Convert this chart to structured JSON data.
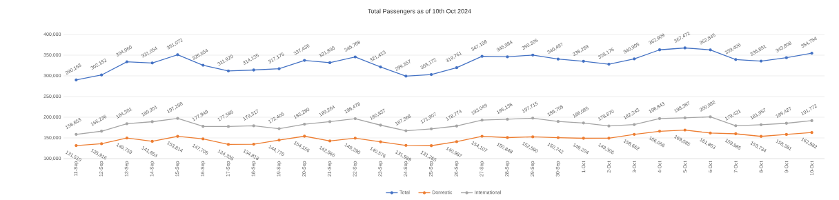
{
  "chart_data": {
    "type": "line",
    "title": "Total Passengers as of 10th Oct 2024",
    "categories": [
      "11-Sep",
      "12-Sep",
      "13-Sep",
      "14-Sep",
      "15-Sep",
      "16-Sep",
      "17-Sep",
      "18-Sep",
      "19-Sep",
      "20-Sep",
      "21-Sep",
      "22-Sep",
      "23-Sep",
      "24-Sep",
      "25-Sep",
      "26-Sep",
      "27-Sep",
      "28-Sep",
      "29-Sep",
      "30-Sep",
      "1-Oct",
      "2-Oct",
      "3-Oct",
      "4-Oct",
      "5-Oct",
      "6-Oct",
      "7-Oct",
      "8-Oct",
      "9-Oct",
      "10-Oct"
    ],
    "series": [
      {
        "name": "Total",
        "color": "#4472c4",
        "values": [
          290163,
          302152,
          334060,
          331054,
          351072,
          325654,
          311920,
          314135,
          317175,
          337436,
          331830,
          345768,
          321413,
          299357,
          303172,
          319761,
          347156,
          345984,
          350305,
          340497,
          335289,
          328176,
          340905,
          362909,
          367472,
          362845,
          339406,
          335691,
          343808,
          354754
        ],
        "value_labels": [
          "290,163",
          "302,152",
          "334,060",
          "331,054",
          "351,072",
          "325,654",
          "311,920",
          "314,135",
          "317,175",
          "337,436",
          "331,830",
          "345,768",
          "321,413",
          "299,357",
          "303,172",
          "319,761",
          "347,156",
          "345,984",
          "350,305",
          "340,497",
          "335,289",
          "328,176",
          "340,905",
          "362,909",
          "367,472",
          "362,845",
          "339,406",
          "335,691",
          "343,808",
          "354,754"
        ]
      },
      {
        "name": "Domestic",
        "color": "#ed7d31",
        "values": [
          131510,
          135916,
          149759,
          141853,
          153814,
          147705,
          134335,
          134818,
          144770,
          154156,
          142566,
          149290,
          140576,
          131989,
          131265,
          140987,
          154107,
          150848,
          152590,
          150742,
          149204,
          149306,
          158662,
          166066,
          169085,
          161863,
          159985,
          153734,
          158381,
          162982
        ],
        "value_labels": [
          "131,510",
          "135,916",
          "149,759",
          "141,853",
          "153,814",
          "147,705",
          "134,335",
          "134,818",
          "144,770",
          "154,156",
          "142,566",
          "149,290",
          "140,576",
          "131,989",
          "131,265",
          "140,987",
          "154,107",
          "150,848",
          "152,590",
          "150,742",
          "149,204",
          "149,306",
          "158,662",
          "166,066",
          "169,085",
          "161,863",
          "159,985",
          "153,734",
          "158,381",
          "162,982"
        ]
      },
      {
        "name": "International",
        "color": "#a5a5a5",
        "values": [
          158653,
          166236,
          184301,
          189201,
          197258,
          177949,
          177585,
          179317,
          172405,
          183280,
          189264,
          196478,
          180837,
          167368,
          171907,
          178774,
          193049,
          195136,
          197715,
          189755,
          186085,
          178870,
          182243,
          196843,
          198387,
          200982,
          179421,
          181957,
          185427,
          191772
        ],
        "value_labels": [
          "158,653",
          "166,236",
          "184,301",
          "189,201",
          "197,258",
          "177,949",
          "177,585",
          "179,317",
          "172,405",
          "183,280",
          "189,264",
          "196,478",
          "180,837",
          "167,368",
          "171,907",
          "178,774",
          "193,049",
          "195,136",
          "197,715",
          "189,755",
          "186,085",
          "178,870",
          "182,243",
          "196,843",
          "198,387",
          "200,982",
          "179,421",
          "181,957",
          "185,427",
          "191,772"
        ]
      }
    ],
    "ylim": [
      100000,
      400000
    ],
    "yticks": [
      {
        "value": 100000,
        "label": "100,000"
      },
      {
        "value": 150000,
        "label": "150,000"
      },
      {
        "value": 200000,
        "label": "200,000"
      },
      {
        "value": 250000,
        "label": "250,000"
      },
      {
        "value": 300000,
        "label": "300,000"
      },
      {
        "value": 350000,
        "label": "350,000"
      },
      {
        "value": 400000,
        "label": "400,000"
      }
    ],
    "grid": "y",
    "legend": "bottom",
    "marker": "circle"
  }
}
